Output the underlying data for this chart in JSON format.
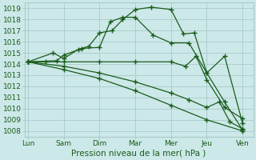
{
  "xlabel": "Pression niveau de la mer( hPa )",
  "x_labels": [
    "Lun",
    "Sam",
    "Dim",
    "Mar",
    "Mer",
    "Jeu",
    "Ven"
  ],
  "x_positions": [
    0,
    1,
    2,
    3,
    4,
    5,
    6
  ],
  "ylim": [
    1007.5,
    1019.5
  ],
  "yticks": [
    1008,
    1009,
    1010,
    1011,
    1012,
    1013,
    1014,
    1015,
    1016,
    1017,
    1018,
    1019
  ],
  "background_color": "#cce8e8",
  "grid_color": "#aacccc",
  "line_color": "#1a5c1a",
  "lines": [
    {
      "x": [
        0.0,
        0.7,
        1.0,
        1.4,
        1.7,
        2.0,
        2.35,
        2.65,
        3.0,
        3.45,
        4.0,
        4.35,
        4.65,
        5.0,
        5.5,
        6.0
      ],
      "y": [
        1014.2,
        1015.0,
        1014.5,
        1015.3,
        1015.6,
        1016.8,
        1017.0,
        1018.0,
        1018.9,
        1019.1,
        1018.9,
        1016.7,
        1016.8,
        1013.2,
        1010.6,
        1008.1
      ]
    },
    {
      "x": [
        0.0,
        0.8,
        1.0,
        1.5,
        2.0,
        2.3,
        2.65,
        3.0,
        3.5,
        4.0,
        4.5,
        5.0,
        5.5,
        6.0
      ],
      "y": [
        1014.2,
        1014.3,
        1014.8,
        1015.4,
        1015.5,
        1017.8,
        1018.2,
        1018.2,
        1016.6,
        1015.9,
        1015.9,
        1013.2,
        1014.7,
        1008.7
      ]
    },
    {
      "x": [
        0.0,
        0.5,
        1.0,
        2.0,
        3.0,
        4.0,
        4.4,
        4.7,
        5.0,
        5.5,
        6.0
      ],
      "y": [
        1014.2,
        1014.2,
        1014.2,
        1014.2,
        1014.2,
        1014.2,
        1013.8,
        1014.7,
        1012.6,
        1010.1,
        1009.1
      ]
    },
    {
      "x": [
        0.0,
        1.0,
        2.0,
        3.0,
        4.0,
        4.5,
        5.0,
        5.35,
        5.65,
        6.0
      ],
      "y": [
        1014.2,
        1013.8,
        1013.2,
        1012.4,
        1011.4,
        1010.8,
        1010.1,
        1010.6,
        1008.8,
        1008.2
      ]
    },
    {
      "x": [
        0.0,
        1.0,
        2.0,
        3.0,
        4.0,
        5.0,
        6.0
      ],
      "y": [
        1014.2,
        1013.5,
        1012.7,
        1011.6,
        1010.3,
        1009.0,
        1008.0
      ]
    }
  ]
}
